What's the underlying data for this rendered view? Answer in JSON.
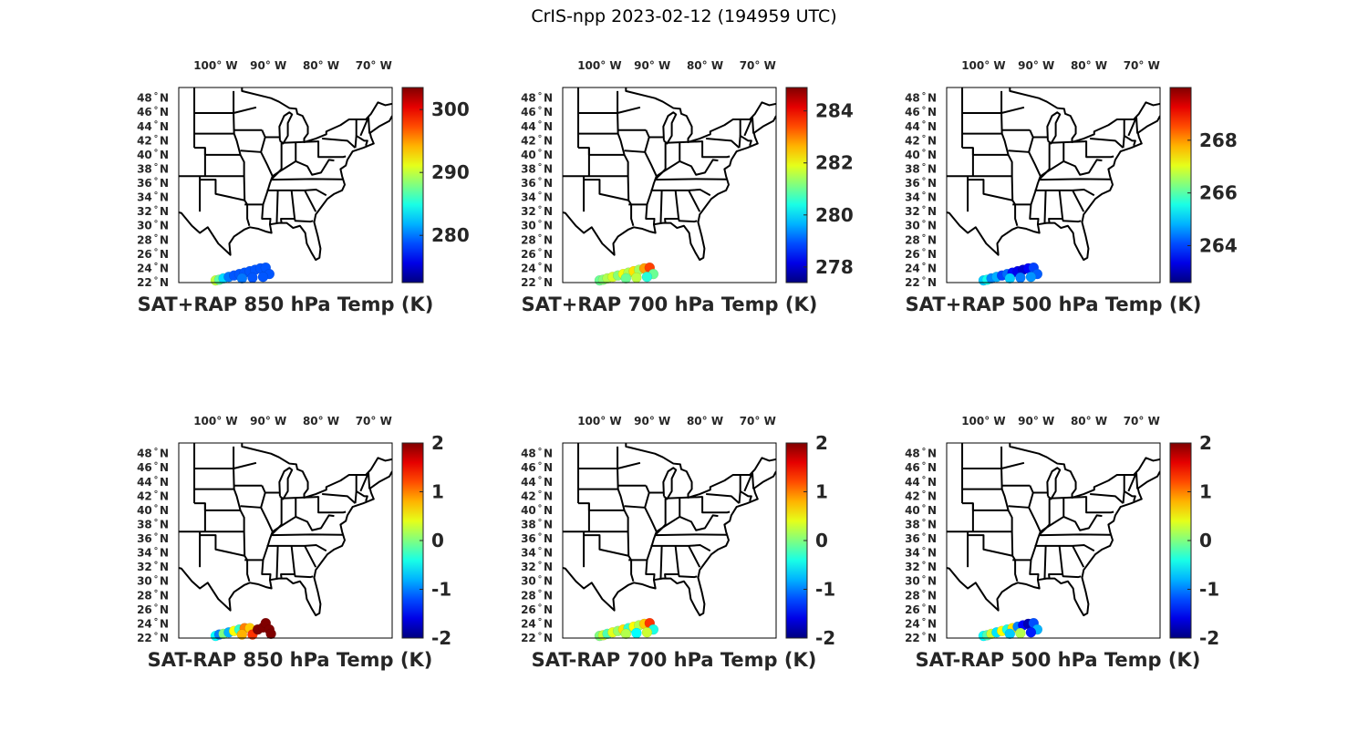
{
  "figure_title": "CrIS-npp 2023-02-12 (194959 UTC)",
  "chart_data": [
    {
      "type": "scatter",
      "title": "SAT+RAP 850 hPa Temp (K)",
      "xticks": [
        "100° W",
        "90° W",
        "80° W",
        "70° W"
      ],
      "xtick_values": [
        -100,
        -90,
        -80,
        -70
      ],
      "yticks": [
        "22 N",
        "24 N",
        "26 N",
        "28 N",
        "30 N",
        "32 N",
        "34 N",
        "36 N",
        "38 N",
        "40 N",
        "42 N",
        "44 N",
        "46 N",
        "48 N"
      ],
      "ytick_values": [
        22,
        24,
        26,
        28,
        30,
        32,
        34,
        36,
        38,
        40,
        42,
        44,
        46,
        48
      ],
      "xlim": [
        -107,
        -66.5
      ],
      "ylim": [
        22,
        49.5
      ],
      "colorbar": {
        "colormap": "jet",
        "range": [
          272.5,
          303.5
        ],
        "ticks": [
          280,
          290,
          300
        ],
        "tick_labels": [
          "280",
          "290",
          "300"
        ]
      },
      "points": [
        [
          -100,
          22.3,
          290
        ],
        [
          -99.3,
          22.4,
          287
        ],
        [
          -98.5,
          22.6,
          283
        ],
        [
          -97.5,
          22.8,
          280
        ],
        [
          -96.5,
          23.0,
          279
        ],
        [
          -95.5,
          23.2,
          279
        ],
        [
          -94.5,
          23.4,
          279
        ],
        [
          -93.5,
          23.6,
          279
        ],
        [
          -92.5,
          23.8,
          279
        ],
        [
          -91.5,
          24.0,
          279
        ],
        [
          -90.5,
          24.1,
          279
        ],
        [
          -89.8,
          23.2,
          279
        ],
        [
          -91,
          22.8,
          279
        ],
        [
          -93,
          22.7,
          279
        ],
        [
          -95,
          22.6,
          280
        ]
      ]
    },
    {
      "type": "scatter",
      "title": "SAT+RAP 700 hPa Temp (K)",
      "xticks": [
        "100° W",
        "90° W",
        "80° W",
        "70° W"
      ],
      "xtick_values": [
        -100,
        -90,
        -80,
        -70
      ],
      "yticks": [
        "22 N",
        "24 N",
        "26 N",
        "28 N",
        "30 N",
        "32 N",
        "34 N",
        "36 N",
        "38 N",
        "40 N",
        "42 N",
        "44 N",
        "46 N",
        "48 N"
      ],
      "ytick_values": [
        22,
        24,
        26,
        28,
        30,
        32,
        34,
        36,
        38,
        40,
        42,
        44,
        46,
        48
      ],
      "xlim": [
        -107,
        -66.5
      ],
      "ylim": [
        22,
        49.5
      ],
      "colorbar": {
        "colormap": "jet",
        "range": [
          277.4,
          284.9
        ],
        "ticks": [
          278,
          280,
          282,
          284
        ],
        "tick_labels": [
          "278",
          "280",
          "282",
          "284"
        ]
      },
      "points": [
        [
          -100,
          22.3,
          281
        ],
        [
          -99.3,
          22.4,
          281.2
        ],
        [
          -98.5,
          22.6,
          281.5
        ],
        [
          -97.5,
          22.8,
          281.8
        ],
        [
          -96.5,
          23.0,
          281.2
        ],
        [
          -95.5,
          23.2,
          282
        ],
        [
          -94.5,
          23.4,
          281.5
        ],
        [
          -93.5,
          23.6,
          282.3
        ],
        [
          -92.5,
          23.8,
          281.4
        ],
        [
          -91.5,
          24.0,
          282.8
        ],
        [
          -90.5,
          24.1,
          283.5
        ],
        [
          -89.8,
          23.2,
          281
        ],
        [
          -91,
          22.8,
          280.5
        ],
        [
          -93,
          22.7,
          281.6
        ],
        [
          -95,
          22.6,
          281
        ]
      ]
    },
    {
      "type": "scatter",
      "title": "SAT+RAP 500 hPa Temp (K)",
      "xticks": [
        "100° W",
        "90° W",
        "80° W",
        "70° W"
      ],
      "xtick_values": [
        -100,
        -90,
        -80,
        -70
      ],
      "yticks": [
        "22 N",
        "24 N",
        "26 N",
        "28 N",
        "30 N",
        "32 N",
        "34 N",
        "36 N",
        "38 N",
        "40 N",
        "42 N",
        "44 N",
        "46 N",
        "48 N"
      ],
      "ytick_values": [
        22,
        24,
        26,
        28,
        30,
        32,
        34,
        36,
        38,
        40,
        42,
        44,
        46,
        48
      ],
      "xlim": [
        -107,
        -66.5
      ],
      "ylim": [
        22,
        49.5
      ],
      "colorbar": {
        "colormap": "jet",
        "range": [
          262.6,
          270
        ],
        "ticks": [
          264,
          266,
          268
        ],
        "tick_labels": [
          "264",
          "266",
          "268"
        ]
      },
      "points": [
        [
          -100,
          22.3,
          265
        ],
        [
          -99.3,
          22.4,
          265.5
        ],
        [
          -98.5,
          22.6,
          264.5
        ],
        [
          -97.5,
          22.8,
          264.8
        ],
        [
          -96.5,
          23.0,
          264
        ],
        [
          -95.5,
          23.2,
          264.3
        ],
        [
          -94.5,
          23.4,
          263.6
        ],
        [
          -93.5,
          23.6,
          263.4
        ],
        [
          -92.5,
          23.8,
          263.2
        ],
        [
          -91.5,
          24.0,
          263.5
        ],
        [
          -90.5,
          24.1,
          264
        ],
        [
          -89.8,
          23.2,
          264.2
        ],
        [
          -91,
          22.8,
          264.6
        ],
        [
          -93,
          22.7,
          264.4
        ],
        [
          -95,
          22.6,
          265
        ]
      ]
    },
    {
      "type": "scatter",
      "title": "SAT-RAP 850 hPa Temp (K)",
      "xticks": [
        "100° W",
        "90° W",
        "80° W",
        "70° W"
      ],
      "xtick_values": [
        -100,
        -90,
        -80,
        -70
      ],
      "yticks": [
        "22 N",
        "24 N",
        "26 N",
        "28 N",
        "30 N",
        "32 N",
        "34 N",
        "36 N",
        "38 N",
        "40 N",
        "42 N",
        "44 N",
        "46 N",
        "48 N"
      ],
      "ytick_values": [
        22,
        24,
        26,
        28,
        30,
        32,
        34,
        36,
        38,
        40,
        42,
        44,
        46,
        48
      ],
      "xlim": [
        -107,
        -66.5
      ],
      "ylim": [
        22,
        49.5
      ],
      "colorbar": {
        "colormap": "jet",
        "range": [
          -2,
          2
        ],
        "ticks": [
          -2,
          -1,
          0,
          1,
          2
        ],
        "tick_labels": [
          "-2",
          "-1",
          "0",
          "1",
          "2"
        ]
      },
      "points": [
        [
          -100,
          22.3,
          -0.5
        ],
        [
          -99.3,
          22.5,
          -1
        ],
        [
          -98.5,
          22.6,
          0
        ],
        [
          -97.5,
          22.8,
          -0.8
        ],
        [
          -96.5,
          23.0,
          0.5
        ],
        [
          -95.5,
          23.2,
          -0.3
        ],
        [
          -94.5,
          23.4,
          1
        ],
        [
          -93.5,
          23.4,
          0.7
        ],
        [
          -93,
          22.5,
          1.3
        ],
        [
          -92,
          23.2,
          2
        ],
        [
          -91,
          23.5,
          2
        ],
        [
          -90.5,
          24.1,
          2
        ],
        [
          -89.8,
          23.2,
          2
        ],
        [
          -89.5,
          22.6,
          2
        ],
        [
          -95,
          22.5,
          0.8
        ]
      ]
    },
    {
      "type": "scatter",
      "title": "SAT-RAP 700 hPa Temp (K)",
      "xticks": [
        "100° W",
        "90° W",
        "80° W",
        "70° W"
      ],
      "xtick_values": [
        -100,
        -90,
        -80,
        -70
      ],
      "yticks": [
        "22 N",
        "24 N",
        "26 N",
        "28 N",
        "30 N",
        "32 N",
        "34 N",
        "36 N",
        "38 N",
        "40 N",
        "42 N",
        "44 N",
        "46 N",
        "48 N"
      ],
      "ytick_values": [
        22,
        24,
        26,
        28,
        30,
        32,
        34,
        36,
        38,
        40,
        42,
        44,
        46,
        48
      ],
      "xlim": [
        -107,
        -66.5
      ],
      "ylim": [
        22,
        49.5
      ],
      "colorbar": {
        "colormap": "jet",
        "range": [
          -2,
          2
        ],
        "ticks": [
          -2,
          -1,
          0,
          1,
          2
        ],
        "tick_labels": [
          "-2",
          "-1",
          "0",
          "1",
          "2"
        ]
      },
      "points": [
        [
          -100,
          22.3,
          0
        ],
        [
          -99.3,
          22.4,
          0.3
        ],
        [
          -98.5,
          22.6,
          -0.2
        ],
        [
          -97.5,
          22.8,
          0.4
        ],
        [
          -96.5,
          23.0,
          0.1
        ],
        [
          -95.5,
          23.2,
          0.6
        ],
        [
          -94.5,
          23.4,
          -0.3
        ],
        [
          -93.5,
          23.6,
          0.5
        ],
        [
          -92.5,
          23.8,
          0.2
        ],
        [
          -91.5,
          24.0,
          0.7
        ],
        [
          -90.5,
          24.1,
          1.3
        ],
        [
          -89.8,
          23.2,
          -0.4
        ],
        [
          -91,
          22.8,
          0.3
        ],
        [
          -93,
          22.7,
          -0.5
        ],
        [
          -95,
          22.6,
          0.2
        ]
      ]
    },
    {
      "type": "scatter",
      "title": "SAT-RAP 500 hPa Temp (K)",
      "xticks": [
        "100° W",
        "90° W",
        "80° W",
        "70° W"
      ],
      "xtick_values": [
        -100,
        -90,
        -80,
        -70
      ],
      "yticks": [
        "22 N",
        "24 N",
        "26 N",
        "28 N",
        "30 N",
        "32 N",
        "34 N",
        "36 N",
        "38 N",
        "40 N",
        "42 N",
        "44 N",
        "46 N",
        "48 N"
      ],
      "ytick_values": [
        22,
        24,
        26,
        28,
        30,
        32,
        34,
        36,
        38,
        40,
        42,
        44,
        46,
        48
      ],
      "xlim": [
        -107,
        -66.5
      ],
      "ylim": [
        22,
        49.5
      ],
      "colorbar": {
        "colormap": "jet",
        "range": [
          -2,
          2
        ],
        "ticks": [
          -2,
          -1,
          0,
          1,
          2
        ],
        "tick_labels": [
          "-2",
          "-1",
          "0",
          "1",
          "2"
        ]
      },
      "points": [
        [
          -100,
          22.3,
          -0.5
        ],
        [
          -99.3,
          22.4,
          -0.2
        ],
        [
          -98.5,
          22.6,
          0.3
        ],
        [
          -97.5,
          22.8,
          -0.6
        ],
        [
          -96.5,
          23.0,
          0.5
        ],
        [
          -95.5,
          23.2,
          -0.4
        ],
        [
          -94.5,
          23.4,
          0.6
        ],
        [
          -93.5,
          23.6,
          -1
        ],
        [
          -92.5,
          23.8,
          -1.5
        ],
        [
          -91.5,
          24.0,
          -1.8
        ],
        [
          -90.5,
          24.1,
          -1.2
        ],
        [
          -89.8,
          23.2,
          -0.8
        ],
        [
          -91,
          22.8,
          -1.4
        ],
        [
          -93,
          22.7,
          0.2
        ],
        [
          -95,
          22.6,
          -0.7
        ]
      ]
    }
  ]
}
